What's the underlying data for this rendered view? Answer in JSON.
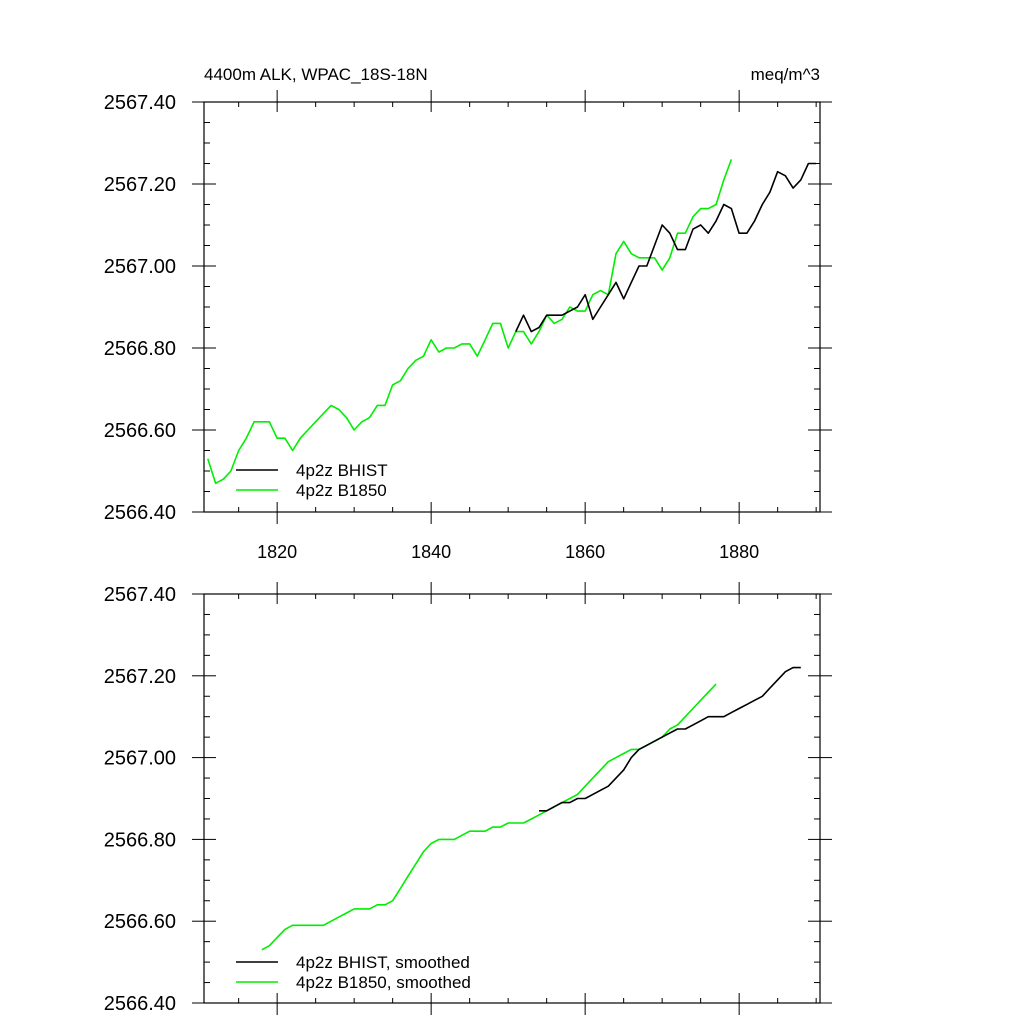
{
  "colors": {
    "bhist": "#000000",
    "b1850": "#00ee00"
  },
  "chart_data": [
    {
      "type": "line",
      "title_left": "4400m ALK, WPAC_18S-18N",
      "title_right": "meq/m^3",
      "xlim": [
        1810.5,
        1890.5
      ],
      "ylim": [
        2566.4,
        2567.4
      ],
      "x_ticks": [
        1820,
        1840,
        1860,
        1880
      ],
      "x_tick_labels": [
        "1820",
        "1840",
        "1860",
        "1880"
      ],
      "y_ticks": [
        2566.4,
        2566.6,
        2566.8,
        2567.0,
        2567.2,
        2567.4
      ],
      "y_tick_labels": [
        "2566.40",
        "2566.60",
        "2566.80",
        "2567.00",
        "2567.20",
        "2567.40"
      ],
      "legend_position": "bottom-left",
      "series": [
        {
          "name": "4p2z BHIST",
          "color": "#000000",
          "x": [
            1851,
            1852,
            1853,
            1854,
            1855,
            1856,
            1857,
            1858,
            1859,
            1860,
            1861,
            1862,
            1863,
            1864,
            1865,
            1866,
            1867,
            1868,
            1869,
            1870,
            1871,
            1872,
            1873,
            1874,
            1875,
            1876,
            1877,
            1878,
            1879,
            1880,
            1881,
            1882,
            1883,
            1884,
            1885,
            1886,
            1887,
            1888,
            1889,
            1890
          ],
          "y": [
            2566.84,
            2566.88,
            2566.84,
            2566.85,
            2566.88,
            2566.88,
            2566.88,
            2566.89,
            2566.9,
            2566.93,
            2566.87,
            2566.9,
            2566.93,
            2566.96,
            2566.92,
            2566.96,
            2567.0,
            2567.0,
            2567.05,
            2567.1,
            2567.08,
            2567.04,
            2567.04,
            2567.09,
            2567.1,
            2567.08,
            2567.11,
            2567.15,
            2567.14,
            2567.08,
            2567.08,
            2567.11,
            2567.15,
            2567.18,
            2567.23,
            2567.22,
            2567.19,
            2567.21,
            2567.25,
            2567.25
          ]
        },
        {
          "name": "4p2z B1850",
          "color": "#00ee00",
          "x": [
            1811,
            1812,
            1813,
            1814,
            1815,
            1816,
            1817,
            1818,
            1819,
            1820,
            1821,
            1822,
            1823,
            1824,
            1825,
            1826,
            1827,
            1828,
            1829,
            1830,
            1831,
            1832,
            1833,
            1834,
            1835,
            1836,
            1837,
            1838,
            1839,
            1840,
            1841,
            1842,
            1843,
            1844,
            1845,
            1846,
            1847,
            1848,
            1849,
            1850,
            1851,
            1852,
            1853,
            1854,
            1855,
            1856,
            1857,
            1858,
            1859,
            1860,
            1861,
            1862,
            1863,
            1864,
            1865,
            1866,
            1867,
            1868,
            1869,
            1870,
            1871,
            1872,
            1873,
            1874,
            1875,
            1876,
            1877,
            1878,
            1879
          ],
          "y": [
            2566.53,
            2566.47,
            2566.48,
            2566.5,
            2566.55,
            2566.58,
            2566.62,
            2566.62,
            2566.62,
            2566.58,
            2566.58,
            2566.55,
            2566.58,
            2566.6,
            2566.62,
            2566.64,
            2566.66,
            2566.65,
            2566.63,
            2566.6,
            2566.62,
            2566.63,
            2566.66,
            2566.66,
            2566.71,
            2566.72,
            2566.75,
            2566.77,
            2566.78,
            2566.82,
            2566.79,
            2566.8,
            2566.8,
            2566.81,
            2566.81,
            2566.78,
            2566.82,
            2566.86,
            2566.86,
            2566.8,
            2566.84,
            2566.84,
            2566.81,
            2566.84,
            2566.88,
            2566.86,
            2566.87,
            2566.9,
            2566.89,
            2566.89,
            2566.93,
            2566.94,
            2566.93,
            2567.03,
            2567.06,
            2567.03,
            2567.02,
            2567.02,
            2567.02,
            2566.99,
            2567.02,
            2567.08,
            2567.08,
            2567.12,
            2567.14,
            2567.14,
            2567.15,
            2567.21,
            2567.26
          ]
        }
      ]
    },
    {
      "type": "line",
      "xlim": [
        1810.5,
        1890.5
      ],
      "ylim": [
        2566.4,
        2567.4
      ],
      "x_ticks": [
        1820,
        1840,
        1860,
        1880
      ],
      "y_ticks": [
        2566.4,
        2566.6,
        2566.8,
        2567.0,
        2567.2,
        2567.4
      ],
      "y_tick_labels": [
        "2566.40",
        "2566.60",
        "2566.80",
        "2567.00",
        "2567.20",
        "2567.40"
      ],
      "legend_position": "bottom-left",
      "series": [
        {
          "name": "4p2z BHIST, smoothed",
          "color": "#000000",
          "x": [
            1854,
            1855,
            1856,
            1857,
            1858,
            1859,
            1860,
            1861,
            1862,
            1863,
            1864,
            1865,
            1866,
            1867,
            1868,
            1869,
            1870,
            1871,
            1872,
            1873,
            1874,
            1875,
            1876,
            1877,
            1878,
            1879,
            1880,
            1881,
            1882,
            1883,
            1884,
            1885,
            1886,
            1887,
            1888
          ],
          "y": [
            2566.87,
            2566.87,
            2566.88,
            2566.89,
            2566.89,
            2566.9,
            2566.9,
            2566.91,
            2566.92,
            2566.93,
            2566.95,
            2566.97,
            2567.0,
            2567.02,
            2567.03,
            2567.04,
            2567.05,
            2567.06,
            2567.07,
            2567.07,
            2567.08,
            2567.09,
            2567.1,
            2567.1,
            2567.1,
            2567.11,
            2567.12,
            2567.13,
            2567.14,
            2567.15,
            2567.17,
            2567.19,
            2567.21,
            2567.22,
            2567.22
          ]
        },
        {
          "name": "4p2z B1850, smoothed",
          "color": "#00ee00",
          "x": [
            1818,
            1819,
            1820,
            1821,
            1822,
            1823,
            1824,
            1825,
            1826,
            1827,
            1828,
            1829,
            1830,
            1831,
            1832,
            1833,
            1834,
            1835,
            1836,
            1837,
            1838,
            1839,
            1840,
            1841,
            1842,
            1843,
            1844,
            1845,
            1846,
            1847,
            1848,
            1849,
            1850,
            1851,
            1852,
            1853,
            1854,
            1855,
            1856,
            1857,
            1858,
            1859,
            1860,
            1861,
            1862,
            1863,
            1864,
            1865,
            1866,
            1867,
            1868,
            1869,
            1870,
            1871,
            1872,
            1873,
            1874,
            1875,
            1876,
            1877
          ],
          "y": [
            2566.53,
            2566.54,
            2566.56,
            2566.58,
            2566.59,
            2566.59,
            2566.59,
            2566.59,
            2566.59,
            2566.6,
            2566.61,
            2566.62,
            2566.63,
            2566.63,
            2566.63,
            2566.64,
            2566.64,
            2566.65,
            2566.68,
            2566.71,
            2566.74,
            2566.77,
            2566.79,
            2566.8,
            2566.8,
            2566.8,
            2566.81,
            2566.82,
            2566.82,
            2566.82,
            2566.83,
            2566.83,
            2566.84,
            2566.84,
            2566.84,
            2566.85,
            2566.86,
            2566.87,
            2566.88,
            2566.89,
            2566.9,
            2566.91,
            2566.93,
            2566.95,
            2566.97,
            2566.99,
            2567.0,
            2567.01,
            2567.02,
            2567.02,
            2567.03,
            2567.04,
            2567.05,
            2567.07,
            2567.08,
            2567.1,
            2567.12,
            2567.14,
            2567.16,
            2567.18
          ]
        }
      ]
    }
  ]
}
